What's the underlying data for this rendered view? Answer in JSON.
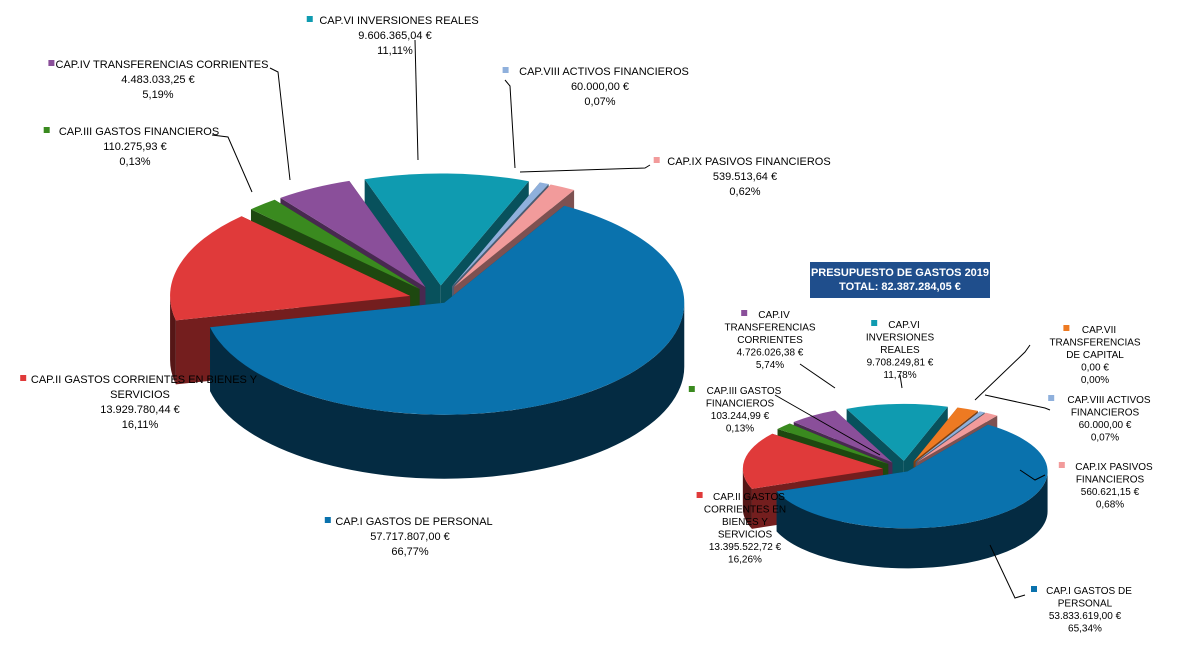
{
  "chart_data": [
    {
      "type": "pie",
      "series": [
        {
          "name": "CAP.I GASTOS DE PERSONAL",
          "value": 57717807.0,
          "amount": "57.717.807,00 €",
          "percent": "66,77%",
          "color": "#0a72ad"
        },
        {
          "name": "CAP.II GASTOS CORRIENTES EN BIENES Y SERVICIOS",
          "lines": [
            "CAP.II GASTOS CORRIENTES EN BIENES Y",
            "SERVICIOS"
          ],
          "value": 13929780.44,
          "amount": "13.929.780,44 €",
          "percent": "16,11%",
          "color": "#e03a3a"
        },
        {
          "name": "CAP.III GASTOS FINANCIEROS",
          "value": 110275.93,
          "amount": "110.275,93 €",
          "percent": "0,13%",
          "color": "#3a8a1f"
        },
        {
          "name": "CAP.IV TRANSFERENCIAS CORRIENTES",
          "value": 4483033.25,
          "amount": "4.483.033,25 €",
          "percent": "5,19%",
          "color": "#8a4f9a"
        },
        {
          "name": "CAP.VI INVERSIONES REALES",
          "value": 9606365.04,
          "amount": "9.606.365,04 €",
          "percent": "11,11%",
          "color": "#0f9bb0"
        },
        {
          "name": "CAP.VIII ACTIVOS FINANCIEROS",
          "value": 60000.0,
          "amount": "60.000,00 €",
          "percent": "0,07%",
          "color": "#8fb0dc"
        },
        {
          "name": "CAP.IX PASIVOS FINANCIEROS",
          "value": 539513.64,
          "amount": "539.513,64 €",
          "percent": "0,62%",
          "color": "#f29b9b"
        }
      ]
    },
    {
      "type": "pie",
      "title_lines": [
        "PRESUPUESTO DE GASTOS 2019",
        "TOTAL: 82.387.284,05 €"
      ],
      "series": [
        {
          "name": "CAP.I GASTOS DE PERSONAL",
          "lines": [
            "CAP.I GASTOS DE",
            "PERSONAL"
          ],
          "value": 53833619.0,
          "amount": "53.833.619,00 €",
          "percent": "65,34%",
          "color": "#0a72ad"
        },
        {
          "name": "CAP.II GASTOS CORRIENTES EN BIENES Y SERVICIOS",
          "lines": [
            "CAP.II GASTOS",
            "CORRIENTES EN",
            "BIENES Y",
            "SERVICIOS"
          ],
          "value": 13395522.72,
          "amount": "13.395.522,72 €",
          "percent": "16,26%",
          "color": "#e03a3a"
        },
        {
          "name": "CAP.III GASTOS FINANCIEROS",
          "lines": [
            "CAP.III GASTOS",
            "FINANCIEROS"
          ],
          "value": 103244.99,
          "amount": "103.244,99 €",
          "percent": "0,13%",
          "color": "#3a8a1f"
        },
        {
          "name": "CAP.IV TRANSFERENCIAS CORRIENTES",
          "lines": [
            "CAP.IV",
            "TRANSFERENCIAS",
            "CORRIENTES"
          ],
          "value": 4726026.38,
          "amount": "4.726.026,38 €",
          "percent": "5,74%",
          "color": "#8a4f9a"
        },
        {
          "name": "CAP.VI INVERSIONES REALES",
          "lines": [
            "CAP.VI",
            "INVERSIONES",
            "REALES"
          ],
          "value": 9708249.81,
          "amount": "9.708.249,81 €",
          "percent": "11,78%",
          "color": "#0f9bb0"
        },
        {
          "name": "CAP.VII TRANSFERENCIAS DE CAPITAL",
          "lines": [
            "CAP.VII",
            "TRANSFERENCIAS",
            "DE CAPITAL"
          ],
          "value": 0.0,
          "amount": "0,00 €",
          "percent": "0,00%",
          "color": "#ee7a22"
        },
        {
          "name": "CAP.VIII ACTIVOS FINANCIEROS",
          "lines": [
            "CAP.VIII ACTIVOS",
            "FINANCIEROS"
          ],
          "value": 60000.0,
          "amount": "60.000,00 €",
          "percent": "0,07%",
          "color": "#8fb0dc"
        },
        {
          "name": "CAP.IX PASIVOS FINANCIEROS",
          "lines": [
            "CAP.IX PASIVOS",
            "FINANCIEROS"
          ],
          "value": 560621.15,
          "amount": "560.621,15 €",
          "percent": "0,68%",
          "color": "#f29b9b"
        }
      ]
    }
  ]
}
